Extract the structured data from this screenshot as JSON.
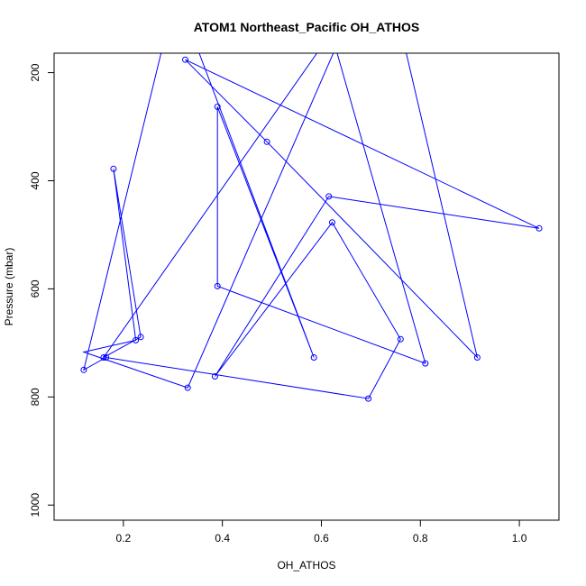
{
  "chart_data": {
    "type": "line",
    "title": "ATOM1 Northeast_Pacific OH_ATHOS",
    "xlabel": "OH_ATHOS",
    "ylabel": "Pressure (mbar)",
    "xlim": [
      0.06,
      1.08
    ],
    "ylim": [
      1028,
      164
    ],
    "y_inverted": true,
    "grid": false,
    "legend": "none",
    "x_ticks": [
      0.2,
      0.4,
      0.6,
      0.8,
      1.0
    ],
    "x_tick_labels": [
      "0.2",
      "0.4",
      "0.6",
      "0.8",
      "1.0"
    ],
    "y_ticks": [
      200,
      400,
      600,
      800,
      1000
    ],
    "y_tick_labels": [
      "200",
      "400",
      "600",
      "800",
      "1000"
    ],
    "series_color": "#0000ff",
    "series": [
      {
        "marker": "open-circle",
        "x": [
          0.27,
          0.585,
          0.39,
          0.39,
          0.81,
          0.62,
          0.16,
          0.235,
          0.18,
          0.225,
          0.12,
          0.33,
          0.72,
          0.915,
          0.49,
          0.325,
          1.04,
          0.615,
          0.385,
          0.622,
          0.76,
          0.695,
          0.165,
          0.12,
          0.33
        ],
        "y": [
          -38,
          727,
          263,
          595,
          738,
          126,
          727,
          689,
          378,
          695,
          717,
          783,
          -38,
          727,
          328,
          176,
          488,
          429,
          762,
          477,
          693,
          803,
          727,
          750,
          -38
        ],
        "draw_point": [
          false,
          true,
          true,
          true,
          true,
          false,
          true,
          true,
          true,
          true,
          false,
          true,
          false,
          true,
          true,
          true,
          true,
          true,
          true,
          true,
          true,
          true,
          true,
          true,
          false
        ]
      }
    ]
  }
}
